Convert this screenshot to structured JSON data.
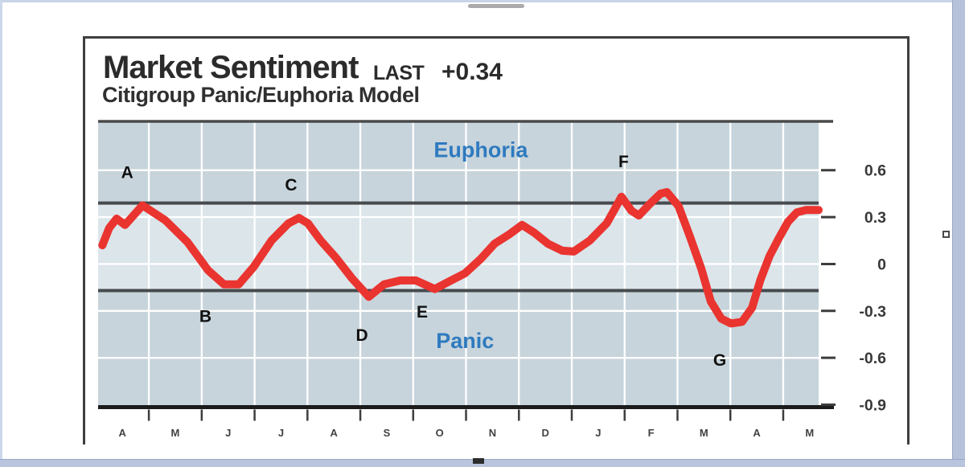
{
  "page": {
    "marks": {
      "plus": "+"
    }
  },
  "chart": {
    "title": "Market Sentiment",
    "last_label": "LAST",
    "last_value": "+0.34",
    "subtitle": "Citigroup Panic/Euphoria Model"
  },
  "chart_data": {
    "type": "line",
    "title": "Market Sentiment (Citigroup Panic/Euphoria Model)",
    "last_value": 0.34,
    "x_tick_labels": [
      "A",
      "M",
      "J",
      "J",
      "A",
      "S",
      "O",
      "N",
      "D",
      "J",
      "F",
      "M",
      "A",
      "M"
    ],
    "y_ticks": [
      0.6,
      0.3,
      0,
      -0.3,
      -0.6,
      -0.9
    ],
    "y_tick_labels": [
      "0.6",
      "0.3",
      "0",
      "-0.3",
      "-0.6",
      "-0.9"
    ],
    "xlim": [
      -0.46,
      13.17
    ],
    "ylim": [
      -0.905,
      0.907
    ],
    "h_grid_values": [
      0.6,
      0.3,
      0,
      -0.3,
      -0.6
    ],
    "v_grid_positions": [
      0.5,
      1.5,
      2.5,
      3.5,
      4.5,
      5.5,
      6.5,
      7.5,
      8.5,
      9.5,
      10.5,
      11.5,
      12.5
    ],
    "thresholds": {
      "euphoria": 0.39,
      "panic": -0.17
    },
    "zones": [
      {
        "label": "Euphoria",
        "x": 6.78,
        "y": 0.73
      },
      {
        "label": "Panic",
        "x": 6.48,
        "y": -0.49
      }
    ],
    "annotations": [
      {
        "label": "A",
        "x": 0.09,
        "y": 0.59
      },
      {
        "label": "B",
        "x": 1.57,
        "y": -0.33
      },
      {
        "label": "C",
        "x": 3.19,
        "y": 0.51
      },
      {
        "label": "D",
        "x": 4.53,
        "y": -0.45
      },
      {
        "label": "E",
        "x": 5.67,
        "y": -0.3
      },
      {
        "label": "F",
        "x": 9.48,
        "y": 0.66
      },
      {
        "label": "G",
        "x": 11.3,
        "y": -0.61
      }
    ],
    "series": [
      {
        "name": "Market Sentiment",
        "color": "#ea3430",
        "points": [
          [
            -0.38,
            0.12
          ],
          [
            -0.25,
            0.23
          ],
          [
            -0.11,
            0.29
          ],
          [
            0.05,
            0.25
          ],
          [
            0.38,
            0.375
          ],
          [
            0.81,
            0.28
          ],
          [
            1.23,
            0.14
          ],
          [
            1.62,
            -0.04
          ],
          [
            1.92,
            -0.13
          ],
          [
            2.2,
            -0.13
          ],
          [
            2.48,
            -0.02
          ],
          [
            2.82,
            0.15
          ],
          [
            3.14,
            0.26
          ],
          [
            3.34,
            0.295
          ],
          [
            3.51,
            0.26
          ],
          [
            3.75,
            0.15
          ],
          [
            4.04,
            0.04
          ],
          [
            4.34,
            -0.09
          ],
          [
            4.66,
            -0.21
          ],
          [
            4.95,
            -0.13
          ],
          [
            5.26,
            -0.105
          ],
          [
            5.55,
            -0.105
          ],
          [
            5.91,
            -0.16
          ],
          [
            6.19,
            -0.11
          ],
          [
            6.48,
            -0.06
          ],
          [
            6.77,
            0.03
          ],
          [
            7.04,
            0.13
          ],
          [
            7.32,
            0.19
          ],
          [
            7.56,
            0.25
          ],
          [
            7.79,
            0.2
          ],
          [
            8.05,
            0.13
          ],
          [
            8.32,
            0.085
          ],
          [
            8.54,
            0.08
          ],
          [
            8.84,
            0.15
          ],
          [
            9.16,
            0.26
          ],
          [
            9.31,
            0.35
          ],
          [
            9.44,
            0.43
          ],
          [
            9.63,
            0.34
          ],
          [
            9.77,
            0.31
          ],
          [
            9.98,
            0.385
          ],
          [
            10.18,
            0.45
          ],
          [
            10.3,
            0.46
          ],
          [
            10.52,
            0.37
          ],
          [
            10.73,
            0.18
          ],
          [
            10.95,
            -0.03
          ],
          [
            11.13,
            -0.24
          ],
          [
            11.33,
            -0.35
          ],
          [
            11.51,
            -0.38
          ],
          [
            11.72,
            -0.37
          ],
          [
            11.91,
            -0.28
          ],
          [
            12.07,
            -0.1
          ],
          [
            12.24,
            0.05
          ],
          [
            12.41,
            0.16
          ],
          [
            12.59,
            0.27
          ],
          [
            12.76,
            0.33
          ],
          [
            12.93,
            0.345
          ],
          [
            13.17,
            0.345
          ]
        ]
      }
    ],
    "colors": {
      "band_inner": "#dbe5ea",
      "band_outer": "#c7d4db",
      "grid": "#ffffff",
      "threshold": "#474b4e",
      "axis_top": "#4a4a4a",
      "axis_bottom": "#1c1c1c",
      "tick": "#3d3d3d",
      "zone_text": "#2e7abf",
      "annotation_text": "#101010",
      "y_label": "#383838",
      "x_label": "#424242"
    }
  }
}
